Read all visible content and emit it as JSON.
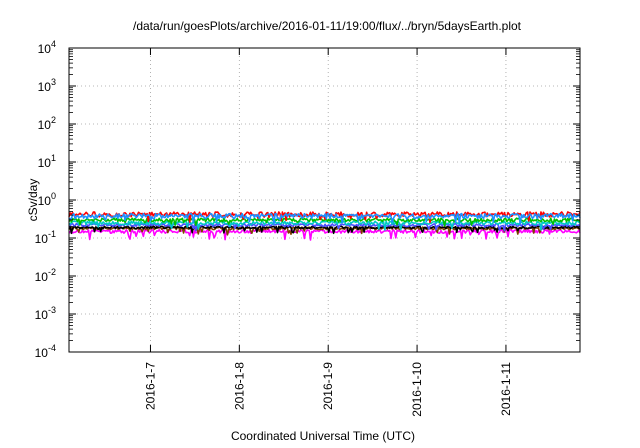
{
  "chart_data": {
    "type": "line",
    "title": "/data/run/goesPlots/archive/2016-01-11/19:00/flux/../bryn/5daysEarth.plot",
    "xlabel": "Coordinated Universal Time (UTC)",
    "ylabel": "cSv/day",
    "yscale": "log",
    "ylim": [
      0.0001,
      10000
    ],
    "ytick_labels": [
      {
        "base": "10",
        "exp": "-4"
      },
      {
        "base": "10",
        "exp": "-3"
      },
      {
        "base": "10",
        "exp": "-2"
      },
      {
        "base": "10",
        "exp": "-1"
      },
      {
        "base": "10",
        "exp": "0"
      },
      {
        "base": "10",
        "exp": "1"
      },
      {
        "base": "10",
        "exp": "2"
      },
      {
        "base": "10",
        "exp": "3"
      },
      {
        "base": "10",
        "exp": "4"
      }
    ],
    "xlim": [
      "2016-01-06 02:00",
      "2016-01-11 20:00"
    ],
    "x_ticks": [
      "2016-01-07",
      "2016-01-08",
      "2016-01-09",
      "2016-01-10",
      "2016-01-11"
    ],
    "xtick_labels": [
      "2016-1-7",
      "2016-1-8",
      "2016-1-9",
      "2016-1-10",
      "2016-1-11"
    ],
    "grid": true,
    "series": [
      {
        "color": "#ff00ff",
        "level": 0.15,
        "noise": 0.05,
        "spike_prob": 0.09,
        "spike_depth": 0.45
      },
      {
        "color": "#7f3f00",
        "level": 0.18,
        "noise": 0.035,
        "spike_prob": 0.05,
        "spike_depth": 0.3
      },
      {
        "color": "#000000",
        "level": 0.19,
        "noise": 0.035,
        "spike_prob": 0.05,
        "spike_depth": 0.3
      },
      {
        "color": "#4d4dff",
        "level": 0.22,
        "noise": 0.04,
        "spike_prob": 0.04,
        "spike_depth": 0.3
      },
      {
        "color": "#00c8c8",
        "level": 0.25,
        "noise": 0.05,
        "spike_prob": 0.04,
        "spike_depth": 0.3
      },
      {
        "color": "#00c000",
        "level": 0.3,
        "noise": 0.05,
        "spike_prob": 0.03,
        "spike_depth": 0.25
      },
      {
        "color": "#ff0000",
        "level": 0.42,
        "noise": 0.07,
        "spike_prob": 0.06,
        "spike_depth": 0.3
      },
      {
        "color": "#1e90ff",
        "level": 0.38,
        "noise": 0.07,
        "spike_prob": 0.06,
        "spike_depth": 0.35
      }
    ]
  }
}
